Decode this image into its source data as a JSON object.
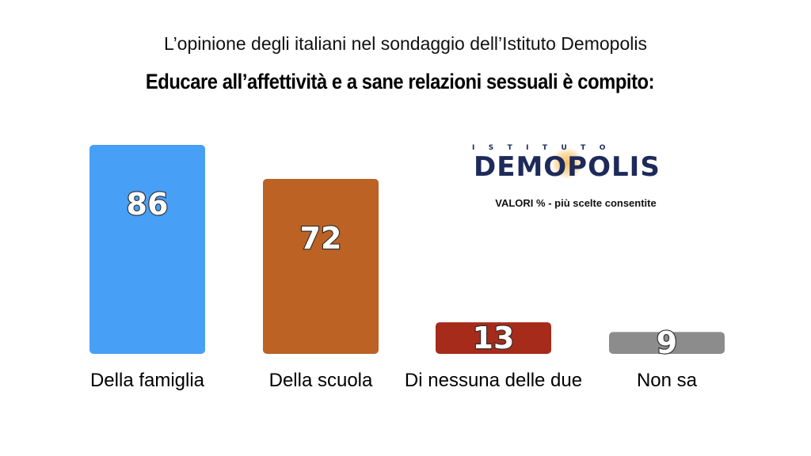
{
  "header": {
    "subtitle": "L’opinione degli italiani nel sondaggio dell’Istituto Demopolis",
    "title": "Educare all’affettività e a sane relazioni sessuali è compito:"
  },
  "logo": {
    "top_text": "ISTITUTO",
    "main_text": "DEMOPOLIS"
  },
  "note": "VALORI % - più scelte consentite",
  "colors": {
    "bar1": "#489ff6",
    "bar2": "#bb6224",
    "bar3": "#a62b1b",
    "bar4": "#8c8c8c",
    "logo": "#1d2a5a"
  },
  "chart_data": {
    "type": "bar",
    "categories": [
      "Della famiglia",
      "Della scuola",
      "Di nessuna delle due",
      "Non sa"
    ],
    "values": [
      86,
      72,
      13,
      9
    ],
    "data_labels": [
      "86",
      "72",
      "13",
      "9"
    ],
    "colors": [
      "#489ff6",
      "#bb6224",
      "#a62b1b",
      "#8c8c8c"
    ],
    "unit": "%",
    "ylim": [
      0,
      100
    ],
    "grid": false,
    "title": "Educare all’affettività e a sane relazioni sessuali è compito:",
    "xlabel": "",
    "ylabel": ""
  }
}
